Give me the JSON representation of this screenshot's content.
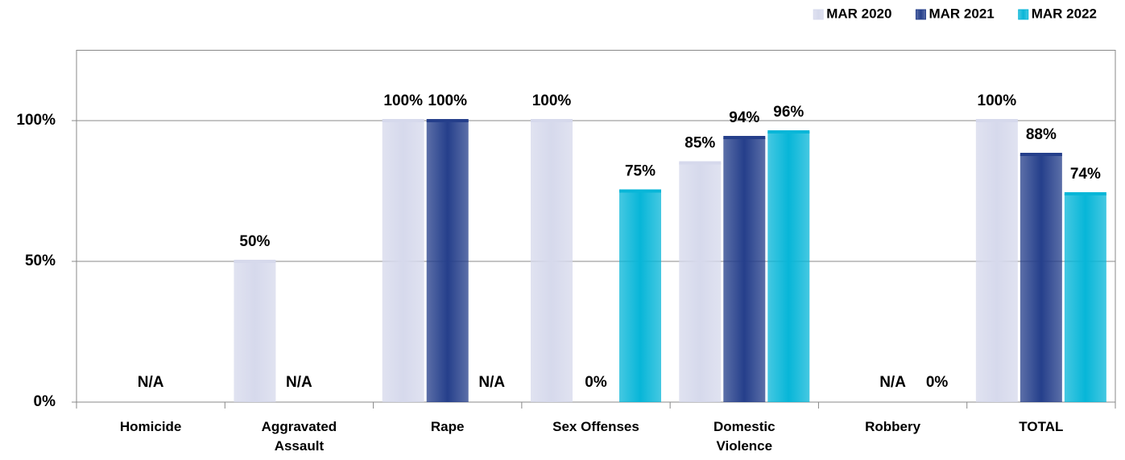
{
  "chart_data": {
    "type": "bar",
    "categories": [
      "Homicide",
      "Aggravated Assault",
      "Rape",
      "Sex Offenses",
      "Domestic Violence",
      "Robbery",
      "TOTAL"
    ],
    "series": [
      {
        "name": "MAR 2020",
        "color": "#d6d9ec",
        "values": [
          null,
          50,
          100,
          100,
          85,
          null,
          100
        ],
        "value_labels": [
          null,
          "50%",
          "100%",
          "100%",
          "85%",
          null,
          "100%"
        ]
      },
      {
        "name": "MAR 2021",
        "color": "#253f8b",
        "values": [
          null,
          null,
          100,
          0,
          94,
          null,
          88
        ],
        "value_labels": [
          "N/A",
          "N/A",
          "100%",
          "0%",
          "94%",
          "N/A",
          "88%"
        ]
      },
      {
        "name": "MAR 2022",
        "color": "#07b6d8",
        "values": [
          null,
          null,
          null,
          75,
          96,
          0,
          74
        ],
        "value_labels": [
          null,
          null,
          "N/A",
          "75%",
          "96%",
          "0%",
          "74%"
        ]
      }
    ],
    "ylim": [
      0,
      125
    ],
    "yticks": [
      {
        "value": 0,
        "label": "0%"
      },
      {
        "value": 50,
        "label": "50%"
      },
      {
        "value": 100,
        "label": "100%"
      }
    ],
    "grid": true,
    "legend": "top-right"
  }
}
